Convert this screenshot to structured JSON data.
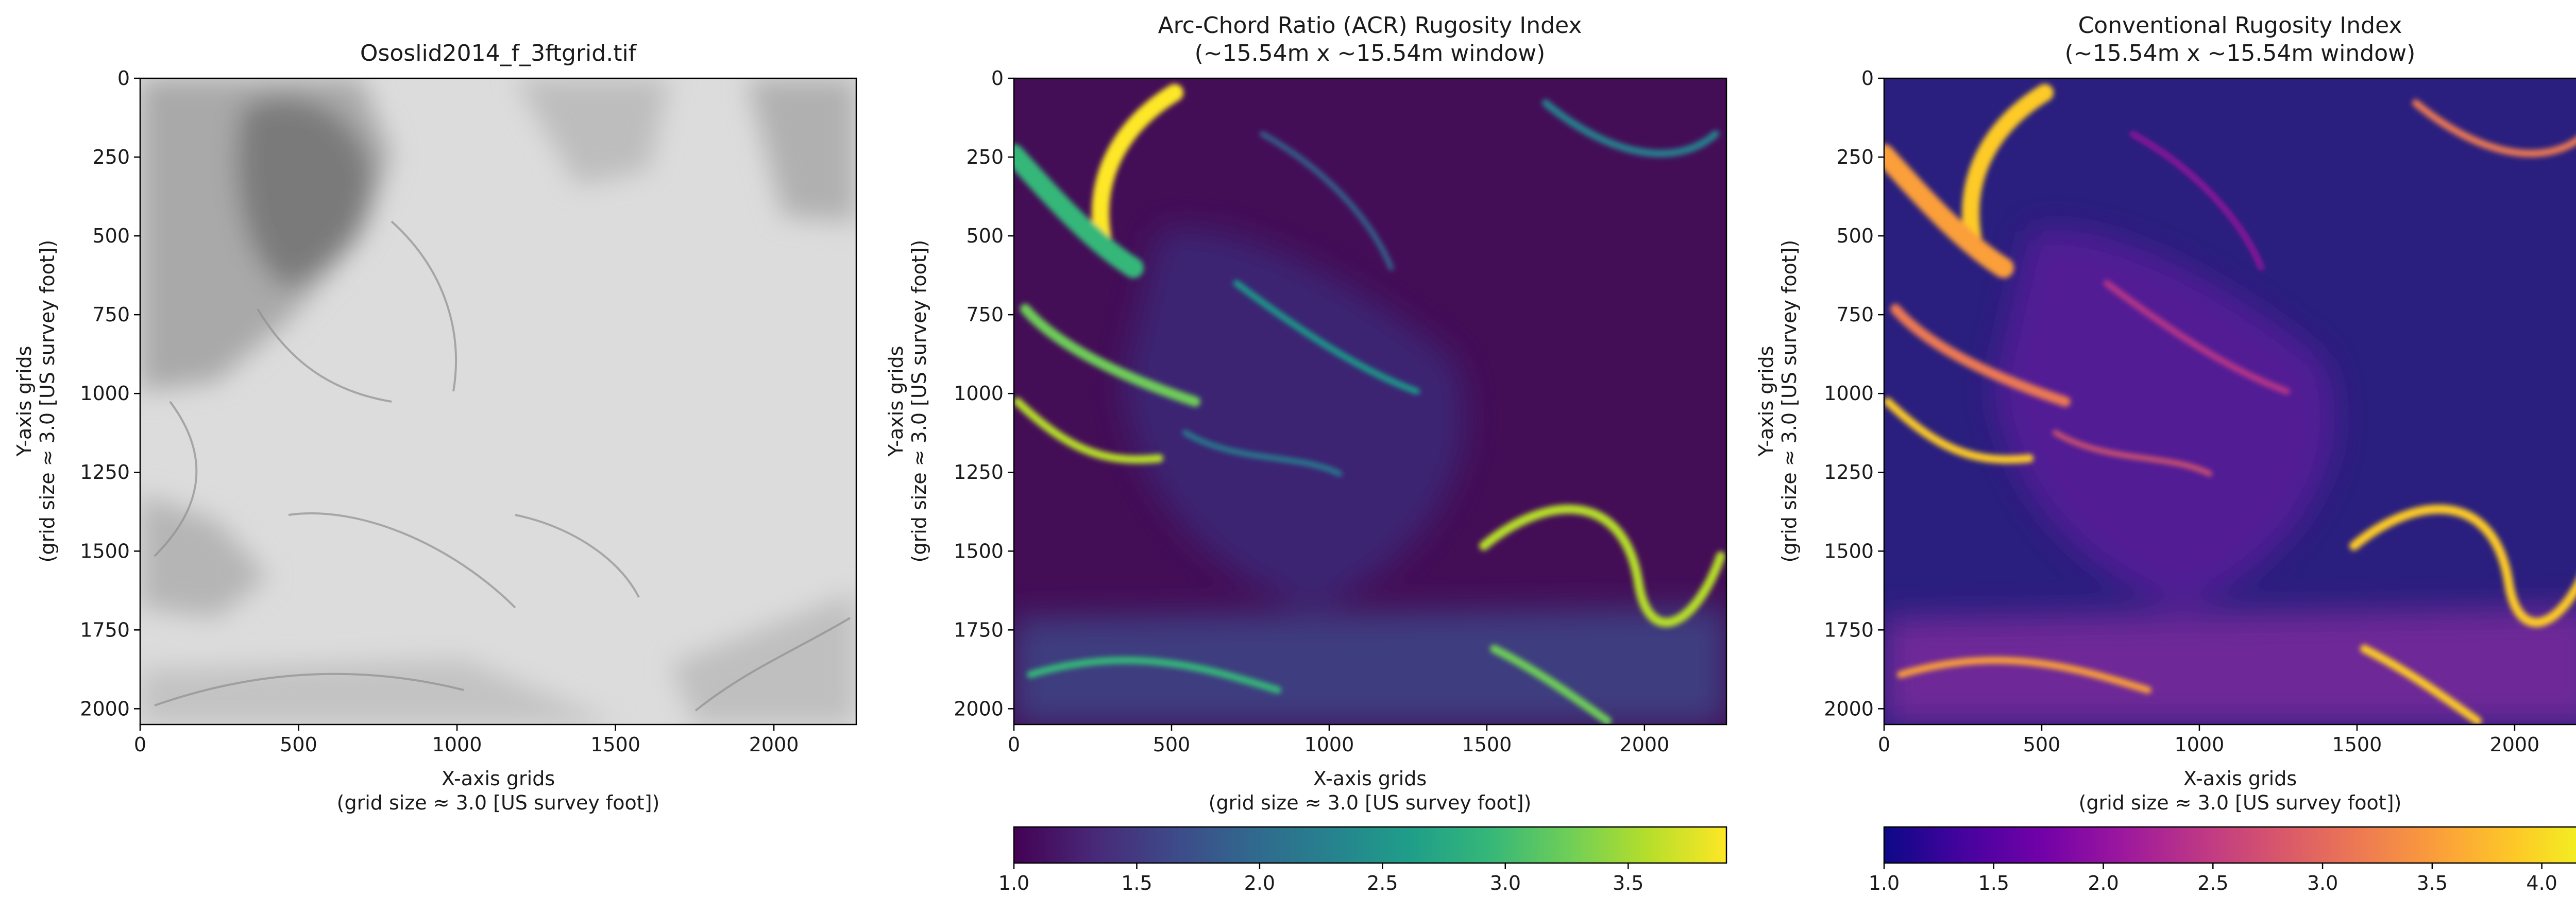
{
  "chart_data": [
    {
      "type": "heatmap",
      "title": "Ososlid2014_f_3ftgrid.tif",
      "subtitle": "",
      "xlabel": "X-axis grids",
      "xlabel2": "(grid size ≈ 3.0 [US survey foot])",
      "ylabel": "Y-axis grids",
      "ylabel2": "(grid size ≈ 3.0 [US survey foot])",
      "xlim": [
        0,
        2260
      ],
      "ylim": [
        2050,
        0
      ],
      "x_ticks": [
        0,
        500,
        1000,
        1500,
        2000
      ],
      "y_ticks": [
        0,
        250,
        500,
        750,
        1000,
        1250,
        1500,
        1750,
        2000
      ],
      "colormap": "gray hillshade",
      "colorbar": null
    },
    {
      "type": "heatmap",
      "title": "Arc-Chord Ratio (ACR) Rugosity Index",
      "subtitle": "(~15.54m x ~15.54m window)",
      "xlabel": "X-axis grids",
      "xlabel2": "(grid size ≈ 3.0 [US survey foot])",
      "ylabel": "Y-axis grids",
      "ylabel2": "(grid size ≈ 3.0 [US survey foot])",
      "xlim": [
        0,
        2260
      ],
      "ylim": [
        2050,
        0
      ],
      "x_ticks": [
        0,
        500,
        1000,
        1500,
        2000
      ],
      "y_ticks": [
        0,
        250,
        500,
        750,
        1000,
        1250,
        1500,
        1750,
        2000
      ],
      "colormap": "viridis",
      "colorbar": {
        "min": 1.0,
        "max": 3.9,
        "ticks": [
          "1.0",
          "1.5",
          "2.0",
          "2.5",
          "3.0",
          "3.5"
        ]
      }
    },
    {
      "type": "heatmap",
      "title": "Conventional Rugosity Index",
      "subtitle": "(~15.54m x ~15.54m window)",
      "xlabel": "X-axis grids",
      "xlabel2": "(grid size ≈ 3.0 [US survey foot])",
      "ylabel": "Y-axis grids",
      "ylabel2": "(grid size ≈ 3.0 [US survey foot])",
      "xlim": [
        0,
        2260
      ],
      "ylim": [
        2050,
        0
      ],
      "x_ticks": [
        0,
        500,
        1000,
        1500,
        2000
      ],
      "y_ticks": [
        0,
        250,
        500,
        750,
        1000,
        1250,
        1500,
        1750,
        2000
      ],
      "colormap": "plasma",
      "colorbar": {
        "min": 1.0,
        "max": 4.25,
        "ticks": [
          "1.0",
          "1.5",
          "2.0",
          "2.5",
          "3.0",
          "3.5",
          "4.0"
        ]
      }
    }
  ],
  "colors": {
    "viridis": [
      "#440154",
      "#482878",
      "#3e4989",
      "#31688e",
      "#26828e",
      "#1f9e89",
      "#35b779",
      "#6ece58",
      "#b5de2b",
      "#fde725"
    ],
    "plasma": [
      "#0d0887",
      "#46039f",
      "#7201a8",
      "#9c179e",
      "#bd3786",
      "#d8576b",
      "#ed7953",
      "#fb9f3a",
      "#fdca26",
      "#f0f921"
    ],
    "acr_background": "#440e57",
    "cri_background": "#2a1f7e",
    "hillshade_background": "#dcdcdc"
  }
}
